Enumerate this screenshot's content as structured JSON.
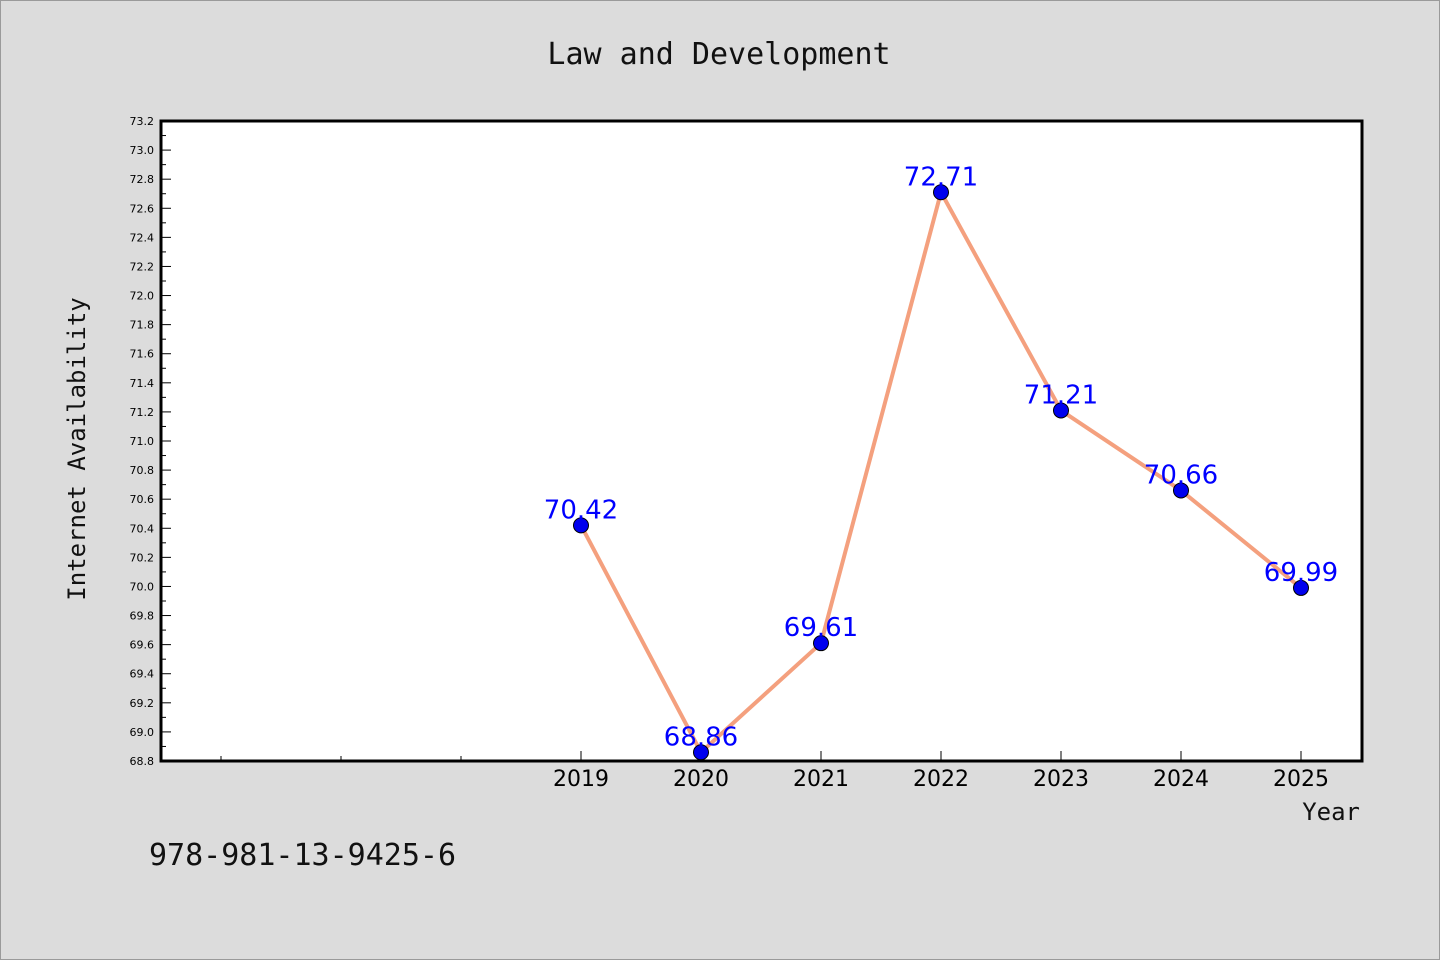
{
  "chart_data": {
    "type": "line",
    "title": "Law and Development",
    "xlabel": "Year",
    "ylabel": "Internet Availability",
    "x": [
      "2019",
      "2020",
      "2021",
      "2022",
      "2023",
      "2024",
      "2025"
    ],
    "series": [
      {
        "values": [
          70.42,
          68.86,
          69.61,
          72.71,
          71.21,
          70.66,
          69.99
        ],
        "labels": [
          "70.42",
          "68.86",
          "69.61",
          "72.71",
          "71.21",
          "70.66",
          "69.99"
        ]
      }
    ],
    "ylim": [
      68.8,
      73.2
    ],
    "yticks": [
      "68.8",
      "69.0",
      "69.2",
      "69.4",
      "69.6",
      "69.8",
      "70.0",
      "70.2",
      "70.4",
      "70.6",
      "70.8",
      "71.0",
      "71.2",
      "71.4",
      "71.6",
      "71.8",
      "72.0",
      "72.2",
      "72.4",
      "72.6",
      "72.8",
      "73.0",
      "73.2"
    ],
    "grid": false,
    "colors": {
      "line": "#f4a07e",
      "marker": "#0000ee",
      "data_label": "#0000ff",
      "plot_background": "#ffffff",
      "page_background": "#dcdcdc"
    }
  },
  "footer": {
    "isbn": "978-981-13-9425-6"
  }
}
